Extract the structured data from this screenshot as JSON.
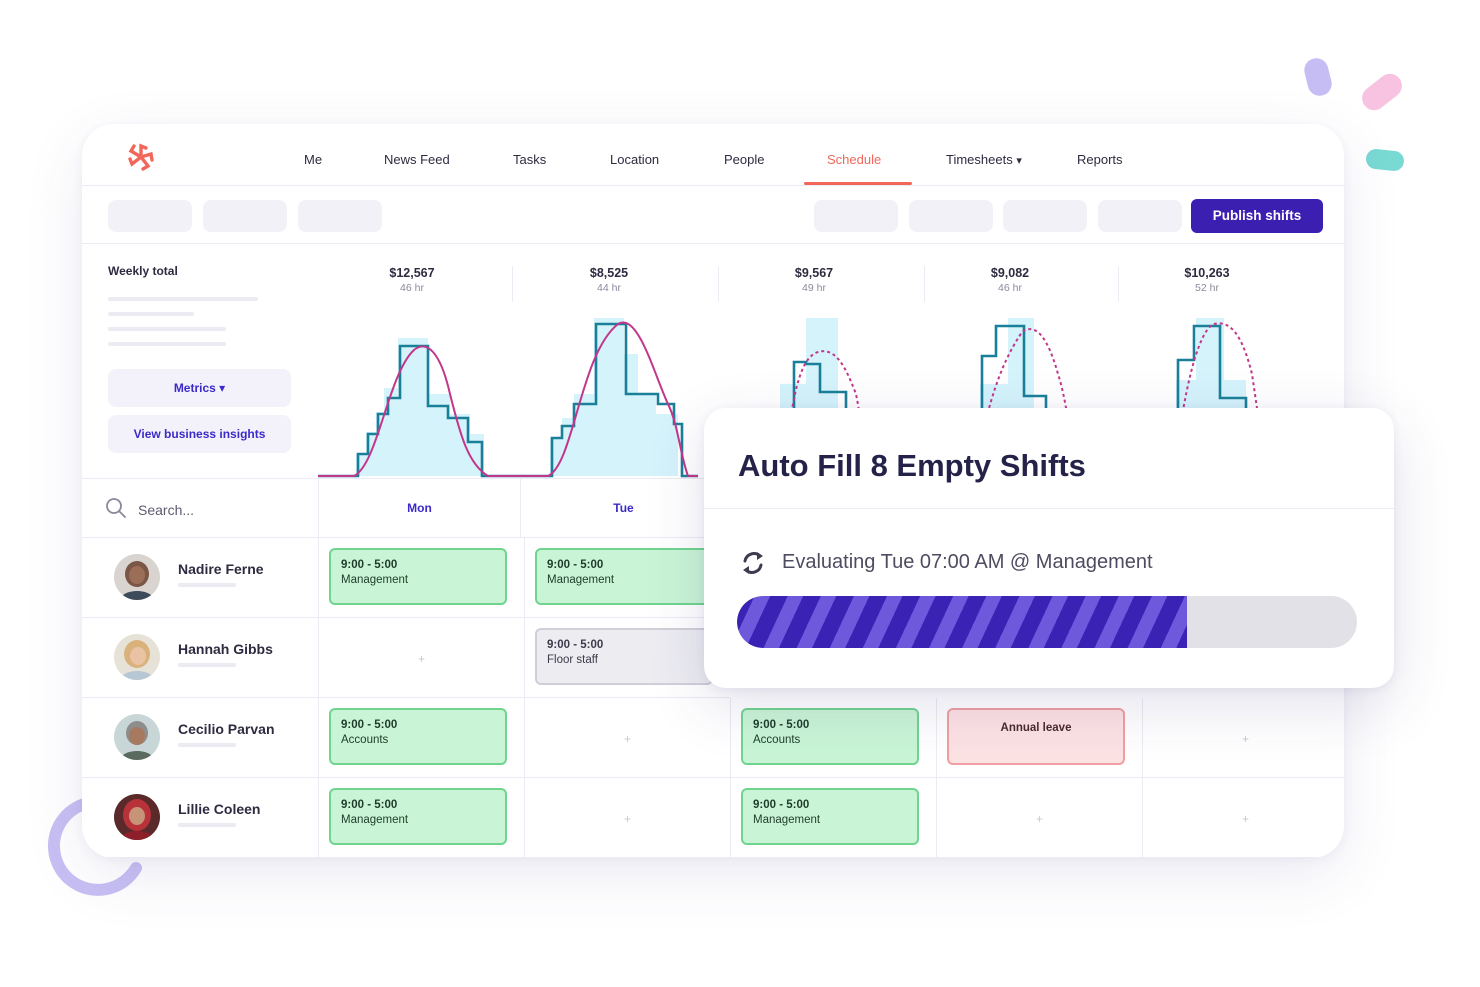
{
  "nav": {
    "items": [
      "Me",
      "News Feed",
      "Tasks",
      "Location",
      "People",
      "Schedule",
      "Timesheets",
      "Reports"
    ],
    "active": "Schedule",
    "timesheets_caret": "▾"
  },
  "toolbar": {
    "publish_label": "Publish shifts"
  },
  "sidebar": {
    "weekly_total_label": "Weekly total",
    "metrics_label": "Metrics ▾",
    "insights_label": "View business insights"
  },
  "day_totals": [
    {
      "amount": "$12,567",
      "hours": "46 hr"
    },
    {
      "amount": "$8,525",
      "hours": "44 hr"
    },
    {
      "amount": "$9,567",
      "hours": "49 hr"
    },
    {
      "amount": "$9,082",
      "hours": "46 hr"
    },
    {
      "amount": "$10,263",
      "hours": "52 hr"
    }
  ],
  "search": {
    "placeholder": "Search..."
  },
  "days": [
    "Mon",
    "Tue"
  ],
  "people": [
    {
      "name": "Nadire Ferne"
    },
    {
      "name": "Hannah Gibbs"
    },
    {
      "name": "Cecilio Parvan"
    },
    {
      "name": "Lillie Coleen"
    }
  ],
  "shifts": {
    "nadire_mon": {
      "time": "9:00 - 5:00",
      "role": "Management"
    },
    "nadire_tue": {
      "time": "9:00 - 5:00",
      "role": "Management"
    },
    "hannah_tue": {
      "time": "9:00 - 5:00",
      "role": "Floor staff"
    },
    "cecilio_mon": {
      "time": "9:00 - 5:00",
      "role": "Accounts"
    },
    "cecilio_wed": {
      "time": "9:00 - 5:00",
      "role": "Accounts"
    },
    "cecilio_thu": {
      "label": "Annual leave"
    },
    "lillie_mon": {
      "time": "9:00 - 5:00",
      "role": "Management"
    },
    "lillie_wed": {
      "time": "9:00 - 5:00",
      "role": "Management"
    }
  },
  "empty_cell_symbol": "+",
  "popup": {
    "title": "Auto Fill 8 Empty Shifts",
    "status": "Evaluating Tue 07:00 AM @ Management",
    "progress_fraction": 0.725
  },
  "colors": {
    "accent": "#3b1fb0",
    "schedule_active": "#f2675a",
    "shift_green": "#c9f5d6",
    "shift_pink": "#fde2e4",
    "chart_fill": "#d4f3fb",
    "chart_step": "#1a7f98",
    "chart_curve": "#c2368b"
  }
}
